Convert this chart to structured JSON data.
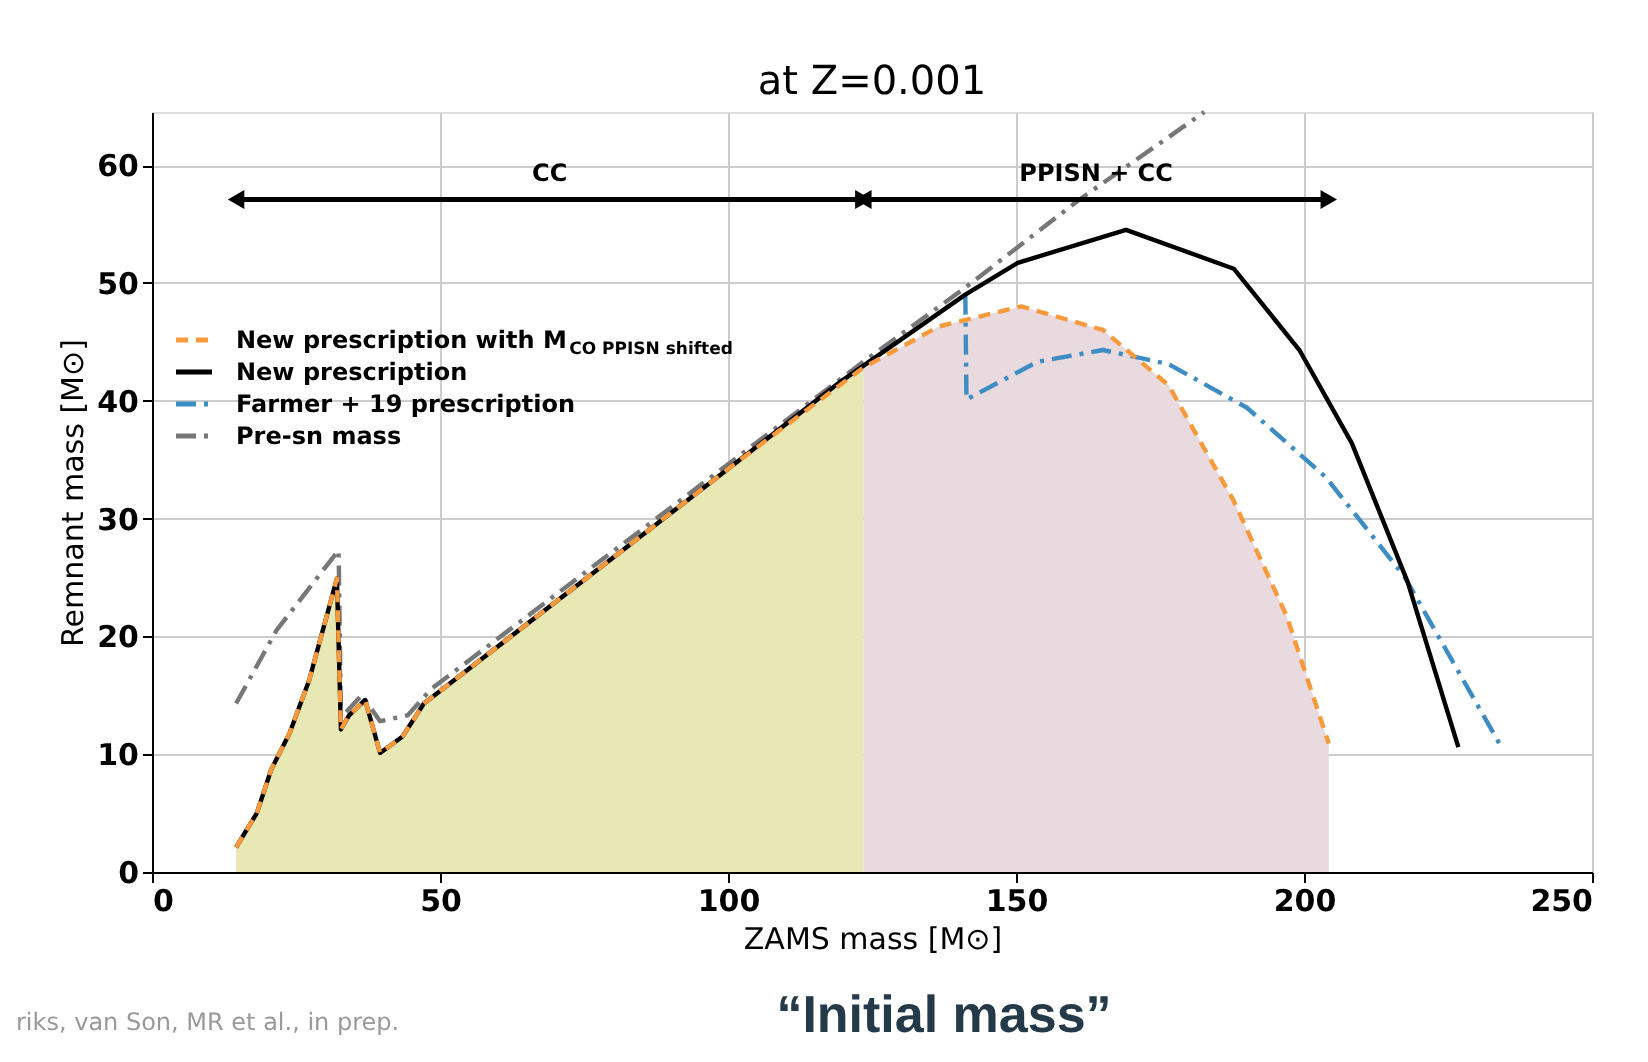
{
  "chart_data": {
    "type": "line",
    "title": "at Z=0.001",
    "xlabel": "ZAMS mass [M⊙]",
    "ylabel": "Remnant mass [M⊙]",
    "xlim": [
      0,
      250
    ],
    "ylim": [
      0,
      64.5
    ],
    "xticks": [
      0,
      50,
      100,
      150,
      200,
      250
    ],
    "yticks": [
      0,
      10,
      20,
      30,
      40,
      50,
      60
    ],
    "grid": true,
    "legend": "top left",
    "annotations": [
      "riks, van Son, MR et al., in prep.",
      "“Initial mass”",
      "CC",
      "PPISN + CC"
    ],
    "series": [
      {
        "type": "area",
        "color": "#e8e8b4",
        "x": [
          14.6,
          18.2,
          20.7,
          23.9,
          27.3,
          32.1,
          32.8,
          34.2,
          37.0,
          39.6,
          43.5,
          47.2,
          100,
          123.5
        ],
        "values": [
          2.1,
          5.0,
          8.7,
          11.8,
          16.3,
          24.9,
          12.1,
          13.3,
          14.6,
          10.1,
          11.5,
          14.3,
          34.2,
          42.8
        ]
      },
      {
        "type": "area",
        "color": "#e8dade",
        "x": [
          123.5,
          136.6,
          150.9,
          165.1,
          176.5,
          187.8,
          197,
          204.3
        ],
        "values": [
          42.8,
          46.3,
          48.0,
          46.0,
          41.3,
          31.5,
          21.7,
          10.9
        ]
      },
      {
        "name": "Pre-sn mass",
        "color": "#777777",
        "line_style": "dashdot",
        "x": [
          14.6,
          21.6,
          27.3,
          32.4,
          32.8,
          36.4,
          39.6,
          44.4,
          48.4,
          123.5,
          141.2,
          161.1,
          182.7
        ],
        "values": [
          14.3,
          20.5,
          24.1,
          27.3,
          13.1,
          15.0,
          12.8,
          13.3,
          15.5,
          43.3,
          49.6,
          57.1,
          64.5
        ]
      },
      {
        "name": "Farmer + 19 prescription",
        "color": "#3d8cc4",
        "line_style": "dashdot",
        "x": [
          141.2,
          141.4,
          153.7,
          165.1,
          176.5,
          190.1,
          203.8,
          217.4,
          234.5
        ],
        "values": [
          49.0,
          40.1,
          43.3,
          44.3,
          43.1,
          39.4,
          33.5,
          25.1,
          10.4
        ]
      },
      {
        "name": "New prescription",
        "color": "#000000",
        "line_style": "solid",
        "x": [
          14.6,
          18.2,
          20.7,
          23.9,
          27.3,
          32.1,
          32.8,
          34.2,
          37.0,
          39.6,
          43.5,
          47.2,
          100,
          119.5,
          141.2,
          150.3,
          169.1,
          187.8,
          199.2,
          208.3,
          218,
          226.8
        ],
        "values": [
          2.1,
          5.0,
          8.7,
          11.8,
          16.3,
          24.9,
          12.1,
          13.3,
          14.6,
          10.1,
          11.5,
          14.3,
          34.2,
          41.6,
          49.0,
          51.7,
          54.5,
          51.2,
          44.3,
          36.4,
          24.6,
          10.6
        ]
      },
      {
        "name": "New prescription with M$_{CO PPISN shifted}$",
        "color": "#f89a3c",
        "line_style": "dashed",
        "x": [
          14.6,
          18.2,
          20.7,
          23.9,
          27.3,
          32.1,
          32.8,
          34.2,
          37.0,
          39.6,
          43.5,
          47.2,
          100,
          123.5,
          136.6,
          150.9,
          165.1,
          176.5,
          187.8,
          197,
          204.3
        ],
        "values": [
          2.1,
          5.0,
          8.7,
          11.8,
          16.3,
          24.9,
          12.1,
          13.3,
          14.6,
          10.1,
          11.5,
          14.3,
          34.2,
          42.8,
          46.3,
          48.0,
          46.0,
          41.3,
          31.5,
          21.7,
          10.9
        ]
      }
    ]
  }
}
